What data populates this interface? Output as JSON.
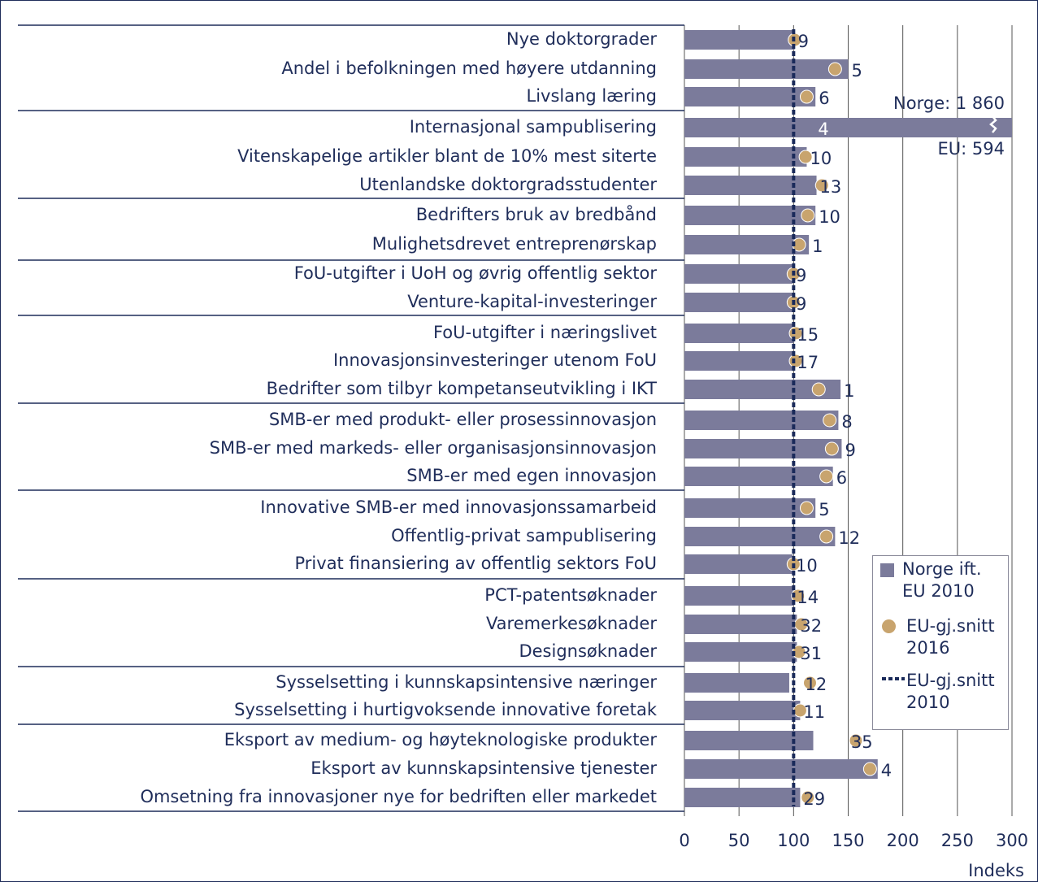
{
  "chart_data": {
    "type": "bar",
    "orientation": "horizontal",
    "categories": [
      "Nye doktorgrader",
      "Andel i befolkningen med høyere utdanning",
      "Livslang læring",
      "Internasjonal sampublisering",
      "Vitenskapelige artikler blant de 10% mest siterte",
      "Utenlandske doktorgradsstudenter",
      "Bedrifters bruk av bredbånd",
      "Mulighetsdrevet entreprenørskap",
      "FoU-utgifter i UoH og øvrig offentlig sektor",
      "Venture-kapital-investeringer",
      "FoU-utgifter i næringslivet",
      "Innovasjonsinvesteringer utenom FoU",
      "Bedrifter som tilbyr kompetanseutvikling i IKT",
      "SMB-er med produkt- eller prosessinnovasjon",
      "SMB-er med markeds- eller organisasjonsinnovasjon",
      "SMB-er med egen innovasjon",
      "Innovative SMB-er med innovasjonssamarbeid",
      "Offentlig-privat sampublisering",
      "Privat finansiering av offentlig sektors FoU",
      "PCT-patentsøknader",
      "Varemerkesøknader",
      "Designsøknader",
      "Sysselsetting i kunnskapsintensive næringer",
      "Sysselsetting i hurtigvoksende innovative foretak",
      "Eksport av medium- og høyteknologiske produkter",
      "Eksport av kunnskapsintensive tjenester",
      "Omsetning fra innovasjoner nye for bedriften eller markedet"
    ],
    "series": [
      {
        "name": "Norge ift. EU 2010",
        "color": "#7b7b9b",
        "kind": "bar",
        "values": [
          101,
          150,
          120,
          313,
          112,
          121,
          120,
          114,
          99,
          99,
          100,
          100,
          143,
          141,
          144,
          136,
          120,
          138,
          99,
          100,
          103,
          103,
          96,
          106,
          118,
          177,
          106
        ]
      },
      {
        "name": "EU-gj.snitt 2016",
        "color": "#c8a46e",
        "kind": "dot",
        "values": [
          101,
          138,
          112,
          null,
          111,
          126,
          113,
          105,
          100,
          100,
          102,
          102,
          123,
          133,
          135,
          130,
          112,
          130,
          100,
          104,
          107,
          105,
          115,
          106,
          157,
          170,
          113
        ]
      }
    ],
    "reference": {
      "name": "EU-gj.snitt 2010",
      "value": 100,
      "color": "#1a2a5a"
    },
    "ranks": [
      9,
      5,
      6,
      4,
      10,
      13,
      10,
      1,
      9,
      9,
      15,
      17,
      1,
      8,
      9,
      6,
      5,
      12,
      10,
      14,
      32,
      31,
      12,
      11,
      35,
      4,
      29
    ],
    "annotations": [
      "Norge: 1 860",
      "EU: 594"
    ],
    "xlabel": "Indeks",
    "xlim": [
      0,
      300
    ],
    "xticks": [
      0,
      50,
      100,
      150,
      200,
      250,
      300
    ],
    "grid": true
  }
}
